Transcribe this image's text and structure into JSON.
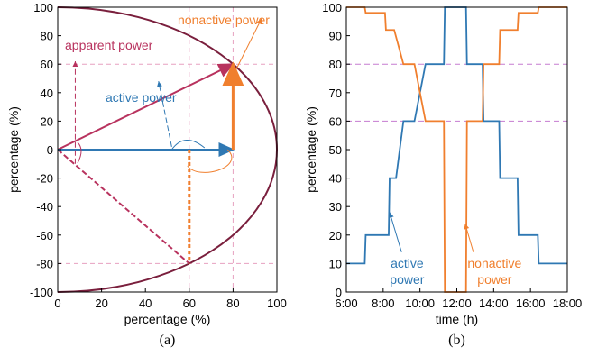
{
  "colors": {
    "apparent": "#b8325e",
    "active": "#2f78b3",
    "nonactive": "#f07f2e",
    "ellipse": "#7a1f3d",
    "ref_magenta": "#c57bd0",
    "ref_pink": "#e7a0c0"
  },
  "chart_data": [
    {
      "type": "line",
      "caption": "(a)",
      "xlabel": "percentage (%)",
      "ylabel": "percentage (%)",
      "xlim": [
        0,
        100
      ],
      "ylim": [
        -100,
        100
      ],
      "xticks": [
        0,
        20,
        40,
        60,
        80,
        100
      ],
      "yticks": [
        -100,
        -80,
        -60,
        -40,
        -20,
        0,
        20,
        40,
        60,
        80,
        100
      ],
      "annotations": {
        "apparent": "apparent power",
        "active": "active power",
        "nonactive": "nonactive power"
      },
      "series": [
        {
          "key": "apparent",
          "x": [
            0,
            80
          ],
          "y": [
            0,
            60
          ]
        },
        {
          "key": "active",
          "x": [
            0,
            80
          ],
          "y": [
            0,
            0
          ]
        },
        {
          "key": "nonactive",
          "x": [
            80,
            80
          ],
          "y": [
            0,
            60
          ]
        },
        {
          "key": "apparent",
          "x": [
            0,
            60
          ],
          "y": [
            0,
            -80
          ]
        },
        {
          "key": "active",
          "x": [
            0,
            60
          ],
          "y": [
            0,
            0
          ]
        },
        {
          "key": "nonactive",
          "x": [
            60,
            60
          ],
          "y": [
            0,
            -80
          ]
        }
      ],
      "ellipse": {
        "cx": 0,
        "cy": 0,
        "rx": 100,
        "ry": 100
      },
      "reference_lines": {
        "h": [
          60,
          -80
        ],
        "v": [
          60,
          80
        ]
      }
    },
    {
      "type": "line",
      "caption": "(b)",
      "xlabel": "time (h)",
      "ylabel": "percentage (%)",
      "xlim": [
        6,
        18
      ],
      "ylim": [
        0,
        100
      ],
      "xtick_values": [
        6,
        8,
        10,
        12,
        14,
        16,
        18
      ],
      "xtick_labels": [
        "6:00",
        "8:00",
        "10:00",
        "12:00",
        "14:00",
        "16:00",
        "18:00"
      ],
      "yticks": [
        0,
        10,
        20,
        30,
        40,
        50,
        60,
        70,
        80,
        90,
        100
      ],
      "reference_lines": {
        "h": [
          80,
          60
        ]
      },
      "series": [
        {
          "name": "active\npower",
          "key": "active",
          "x": [
            6,
            6.5,
            7,
            7.05,
            7.8,
            8.3,
            8.35,
            8.7,
            9.1,
            9.15,
            9.7,
            10.3,
            10.35,
            11.3,
            11.35,
            12.5,
            12.55,
            13.4,
            13.45,
            13.9,
            14.3,
            14.35,
            14.85,
            15.3,
            15.35,
            15.9,
            16.4,
            16.45,
            17.5,
            18
          ],
          "y": [
            10,
            10,
            10,
            20,
            20,
            20,
            40,
            40,
            60,
            60,
            60,
            80,
            80,
            80,
            100,
            100,
            80,
            80,
            60,
            60,
            60,
            40,
            40,
            40,
            20,
            20,
            20,
            10,
            10,
            10
          ]
        },
        {
          "name": "nonactive\npower",
          "key": "nonactive",
          "x": [
            6,
            6.5,
            7,
            7.05,
            7.6,
            8.1,
            8.15,
            8.6,
            9.1,
            9.15,
            9.7,
            10.3,
            10.35,
            11.3,
            11.35,
            12.5,
            12.55,
            13.4,
            13.45,
            13.9,
            14.3,
            14.35,
            14.85,
            15.3,
            15.35,
            15.9,
            16.4,
            16.45,
            17.5,
            18
          ],
          "y": [
            100,
            100,
            100,
            98,
            98,
            98,
            92,
            92,
            80,
            80,
            80,
            60,
            60,
            60,
            0,
            0,
            60,
            60,
            80,
            80,
            80,
            92,
            92,
            92,
            98,
            98,
            98,
            100,
            100,
            100
          ]
        }
      ]
    }
  ]
}
